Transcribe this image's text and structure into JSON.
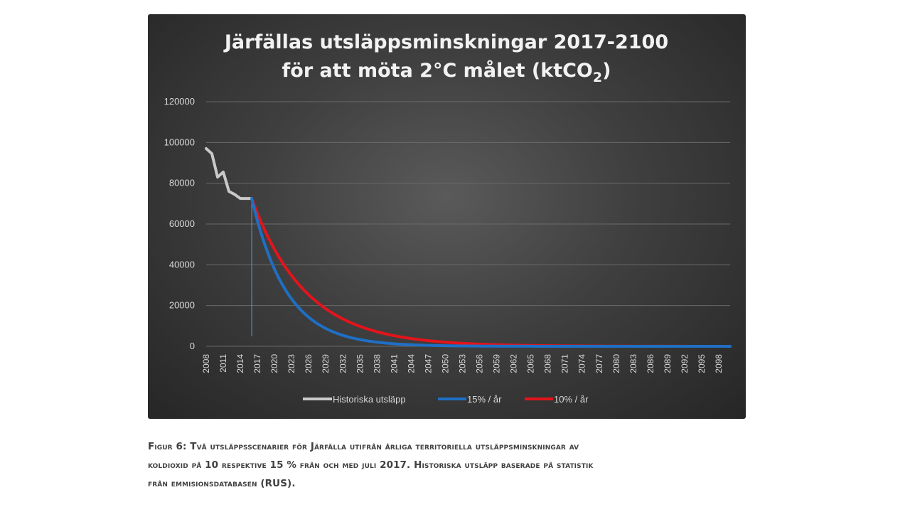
{
  "chart_data": {
    "type": "line",
    "title_line1": "Järfällas utsläppsminskningar 2017-2100",
    "title_line2_prefix": "för att möta 2°C målet (ktCO",
    "title_line2_sub": "2",
    "title_line2_suffix": ")",
    "ylim": [
      0,
      120000
    ],
    "y_ticks": [
      0,
      20000,
      40000,
      60000,
      80000,
      100000,
      120000
    ],
    "y_tick_labels": [
      "0",
      "20000",
      "40000",
      "60000",
      "80000",
      "100000",
      "120000"
    ],
    "x_range": [
      2008,
      2100
    ],
    "x_tick_labels": [
      "2008",
      "2011",
      "2014",
      "2017",
      "2020",
      "2023",
      "2026",
      "2029",
      "2032",
      "2035",
      "2038",
      "2041",
      "2044",
      "2047",
      "2050",
      "2053",
      "2056",
      "2059",
      "2062",
      "2065",
      "2068",
      "2071",
      "2074",
      "2077",
      "2080",
      "2083",
      "2086",
      "2089",
      "2092",
      "2095",
      "2098"
    ],
    "vertical_marker_x": 2016,
    "grid": true,
    "legend_position": "bottom",
    "series": [
      {
        "name": "Historiska utsläpp",
        "color": "#c9c9c9",
        "points": [
          [
            2008,
            97000
          ],
          [
            2009,
            94500
          ],
          [
            2010,
            83000
          ],
          [
            2011,
            85500
          ],
          [
            2012,
            76000
          ],
          [
            2013,
            74500
          ],
          [
            2014,
            72500
          ],
          [
            2015,
            72500
          ],
          [
            2016,
            72500
          ]
        ]
      },
      {
        "name": "15% / år",
        "color": "#1f6fc4",
        "start": [
          2016,
          72500
        ],
        "annual_reduction_percent": 15
      },
      {
        "name": "10% / år",
        "color": "#e3141b",
        "start": [
          2016,
          72500
        ],
        "annual_reduction_percent": 10
      }
    ]
  },
  "caption": {
    "line1": "Figur 6: Två utsläppsscenarier för Järfälla utifrån årliga territoriella utsläppsminskningar av",
    "line2": "koldioxid på 10 respektive 15 % från och med juli 2017. Historiska utsläpp baserade på statistik",
    "line3": "från emmisionsdatabasen (RUS)."
  }
}
